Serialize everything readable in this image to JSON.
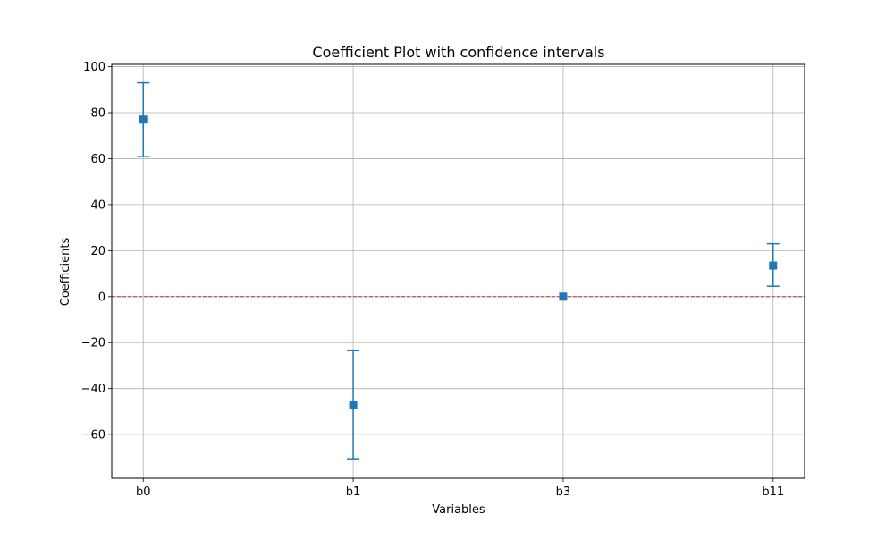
{
  "chart_data": {
    "type": "errorbar",
    "title": "Coefficient Plot with confidence intervals",
    "xlabel": "Variables",
    "ylabel": "Coefficients",
    "categories": [
      "b0",
      "b1",
      "b3",
      "b11"
    ],
    "series": [
      {
        "values": [
          77,
          -47,
          0,
          13.5
        ],
        "ci_lower": [
          61,
          -70.5,
          0,
          4.5
        ],
        "ci_upper": [
          93,
          -23.5,
          0,
          23
        ],
        "color": "#1f77b4",
        "marker": "square"
      }
    ],
    "reference_line": {
      "y": 0,
      "color": "#d62728",
      "style": "dashed"
    },
    "ylim": [
      -79,
      101
    ],
    "yticks": [
      {
        "value": -60,
        "label": "−60"
      },
      {
        "value": -40,
        "label": "−40"
      },
      {
        "value": -20,
        "label": "−20"
      },
      {
        "value": 0,
        "label": "0"
      },
      {
        "value": 20,
        "label": "20"
      },
      {
        "value": 40,
        "label": "40"
      },
      {
        "value": 60,
        "label": "60"
      },
      {
        "value": 80,
        "label": "80"
      },
      {
        "value": 100,
        "label": "100"
      }
    ],
    "grid": true,
    "legend": false
  }
}
